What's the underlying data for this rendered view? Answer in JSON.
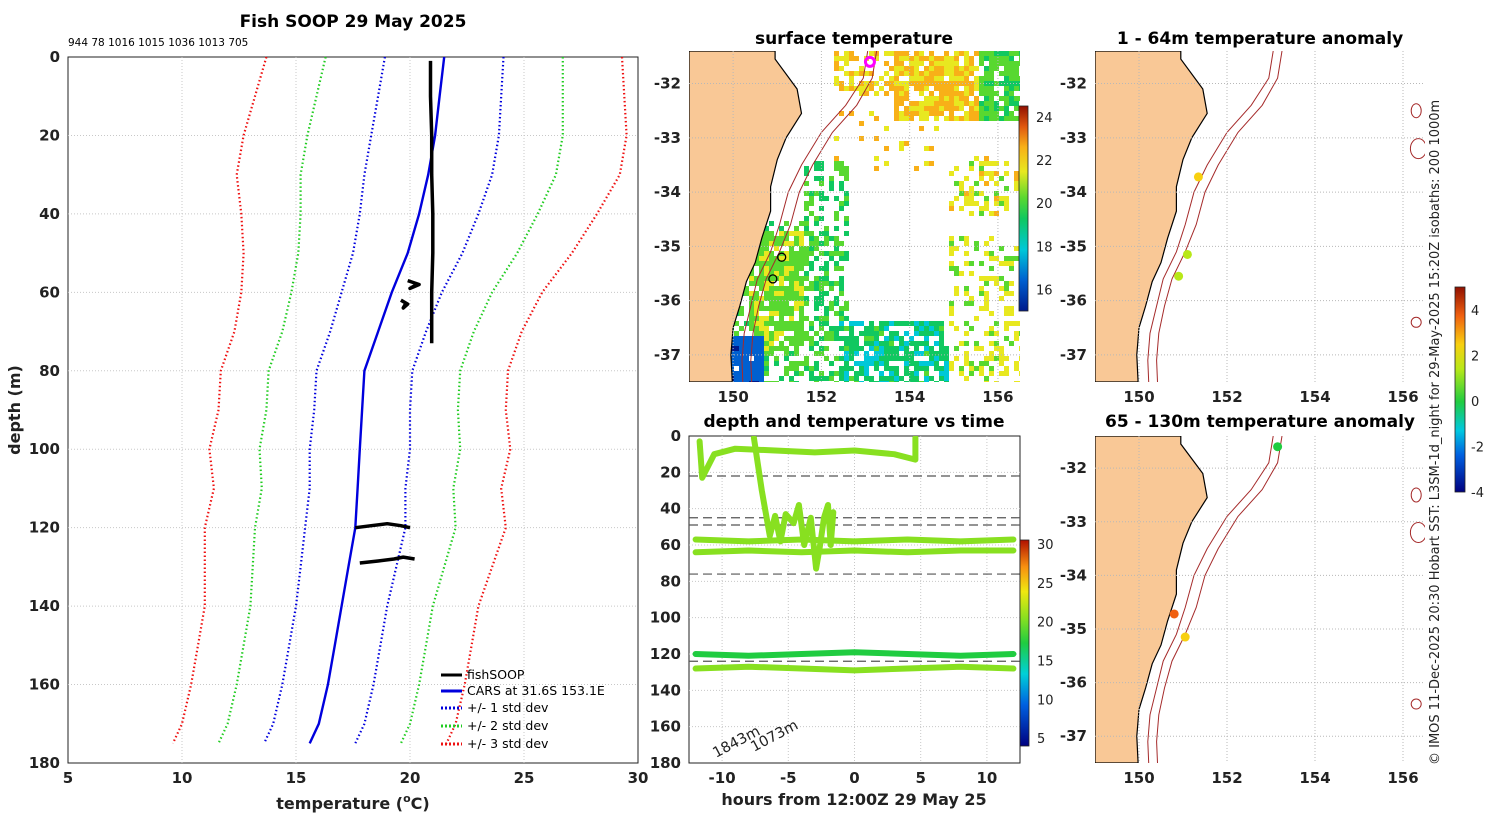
{
  "colors": {
    "land": "#f9c896",
    "coast": "#000000",
    "isobath": "#a52a2a",
    "grid": "#cccccc",
    "fishsoop": "#000000",
    "cars": "#0000dd",
    "std1": "#0000dd",
    "std2": "#22cc22",
    "std3": "#ee1111",
    "marker_magenta": "#ff00ff"
  },
  "panels": {
    "profile": {
      "title": "Fish SOOP 29 May 2025",
      "header_numbers": "944 78 1016 1015 1036 1013 705",
      "xlabel_prefix": "temperature (",
      "xlabel_sup": "o",
      "xlabel_suffix": "C)",
      "ylabel": "depth (m)",
      "legend": [
        "fishSOOP",
        "CARS at 31.6S 153.1E",
        "+/- 1 std dev",
        "+/- 2 std dev",
        "+/- 3 std dev"
      ]
    },
    "sst": {
      "title": "surface temperature"
    },
    "depth_time": {
      "title": "depth and temperature vs time",
      "xlabel": "hours from 12:00Z 29 May 25",
      "bathy_labels": [
        "1843m",
        "1073m"
      ]
    },
    "anom1": {
      "title": "1 - 64m temperature anomaly"
    },
    "anom2": {
      "title": "65 - 130m temperature anomaly"
    },
    "credit": "© IMOS 11-Dec-2025 20:30 Hobart SST: L3SM-1d_night for 29-May-2025 15:20Z isobaths: 200  1000m"
  },
  "chart_data": [
    {
      "type": "line",
      "id": "profile",
      "title": "Fish SOOP 29 May 2025",
      "xlabel": "temperature (oC)",
      "ylabel": "depth (m)",
      "xlim": [
        5,
        30
      ],
      "ylim": [
        180,
        0
      ],
      "xticks": [
        5,
        10,
        15,
        20,
        25,
        30
      ],
      "yticks": [
        0,
        20,
        40,
        60,
        80,
        100,
        120,
        140,
        160,
        180
      ],
      "depths": [
        0,
        10,
        20,
        30,
        40,
        50,
        60,
        70,
        80,
        90,
        100,
        110,
        120,
        130,
        140,
        150,
        160,
        170,
        175
      ],
      "cars_mean": [
        21.5,
        21.3,
        21.1,
        20.8,
        20.4,
        19.9,
        19.2,
        18.6,
        18.0,
        17.9,
        17.8,
        17.7,
        17.6,
        17.3,
        17.0,
        16.7,
        16.4,
        16.0,
        15.6
      ],
      "cars_std": [
        2.6,
        2.7,
        2.8,
        2.8,
        2.6,
        2.4,
        2.2,
        2.1,
        2.1,
        2.1,
        2.2,
        2.1,
        2.2,
        2.1,
        2.0,
        2.0,
        2.0,
        2.0,
        2.0
      ],
      "series_names": [
        "fishSOOP",
        "CARS at 31.6S 153.1E",
        "+/- 1 std dev",
        "+/- 2 std dev",
        "+/- 3 std dev"
      ],
      "fishsoop_segments": [
        {
          "depths": [
            1,
            10,
            20,
            30,
            40,
            50,
            60,
            73
          ],
          "temps": [
            20.9,
            20.9,
            20.95,
            20.95,
            21.0,
            21.0,
            20.95,
            20.95
          ]
        },
        {
          "depths": [
            57,
            58,
            59,
            58
          ],
          "temps": [
            19.9,
            20.4,
            20.0,
            20.3
          ]
        },
        {
          "depths": [
            62,
            63,
            64,
            63
          ],
          "temps": [
            19.6,
            19.9,
            19.7,
            19.8
          ]
        },
        {
          "depths": [
            120,
            119.5,
            119,
            119.5,
            120
          ],
          "temps": [
            17.6,
            18.3,
            19.0,
            19.6,
            20.0
          ]
        },
        {
          "depths": [
            129,
            128.5,
            128,
            127.5,
            128
          ],
          "temps": [
            17.8,
            18.6,
            19.3,
            19.7,
            20.2
          ]
        }
      ]
    },
    {
      "type": "heatmap",
      "id": "sst",
      "title": "surface temperature",
      "xlim": [
        149,
        156.5
      ],
      "ylim": [
        -37.5,
        -31.4
      ],
      "xticks": [
        150,
        152,
        154,
        156
      ],
      "yticks": [
        -32,
        -33,
        -34,
        -35,
        -36,
        -37
      ],
      "colorbar": {
        "range": [
          15,
          24.5
        ],
        "ticks": [
          16,
          18,
          20,
          22,
          24
        ]
      },
      "markers": [
        {
          "lon": 153.1,
          "lat": -31.6,
          "style": "magenta-ring"
        },
        {
          "lon": 151.1,
          "lat": -35.2,
          "style": "black-ring"
        },
        {
          "lon": 150.9,
          "lat": -35.6,
          "style": "black-ring"
        }
      ]
    },
    {
      "type": "scatter",
      "id": "depth_time",
      "title": "depth and temperature vs time",
      "xlabel": "hours from 12:00Z 29 May 25",
      "xlim": [
        -12.5,
        12.5
      ],
      "ylim": [
        180,
        0
      ],
      "xticks": [
        -10,
        -5,
        0,
        5,
        10
      ],
      "yticks": [
        0,
        20,
        40,
        60,
        80,
        100,
        120,
        140,
        160,
        180
      ],
      "colorbar": {
        "range": [
          4,
          30.5
        ],
        "ticks": [
          5,
          10,
          15,
          20,
          25,
          30
        ]
      },
      "dashed_depths": [
        22,
        45,
        49,
        76,
        124
      ],
      "tracks": [
        {
          "t": [
            -11.7,
            -11.5,
            -10.6,
            -9,
            -6,
            -3,
            0,
            3,
            4.6,
            4.6
          ],
          "d": [
            3,
            23,
            10,
            7,
            8,
            9,
            8,
            10,
            13,
            1
          ],
          "temp": 22.5
        },
        {
          "t": [
            -7.6,
            -7.0,
            -6.4,
            -6.0,
            -5.6,
            -5.2,
            -4.6,
            -4.2,
            -3.8,
            -3.3,
            -2.9,
            -2.6,
            -2.3,
            -2.0,
            -1.8,
            -1.6
          ],
          "d": [
            1,
            30,
            55,
            44,
            58,
            43,
            48,
            38,
            60,
            45,
            73,
            60,
            45,
            38,
            60,
            42
          ],
          "temp": 23
        },
        {
          "t": [
            -12,
            -8,
            -4,
            0,
            4,
            8,
            12
          ],
          "d": [
            57,
            58,
            57,
            58,
            57,
            58,
            57
          ],
          "temp": 21
        },
        {
          "t": [
            -12,
            -8,
            -4,
            0,
            4,
            8,
            12
          ],
          "d": [
            64,
            63,
            64,
            63,
            64,
            63,
            63
          ],
          "temp": 22
        },
        {
          "t": [
            -12,
            -8,
            -4,
            0,
            4,
            8,
            12
          ],
          "d": [
            120,
            121,
            120,
            119,
            120,
            121,
            120
          ],
          "temp": 19.5
        },
        {
          "t": [
            -12,
            -8,
            -4,
            0,
            4,
            8,
            12
          ],
          "d": [
            128,
            127,
            128,
            129,
            128,
            127,
            128
          ],
          "temp": 20.5
        }
      ],
      "annotations": [
        "1843m",
        "1073m"
      ]
    },
    {
      "type": "scatter",
      "id": "anom1",
      "title": "1 - 64m temperature anomaly",
      "xlim": [
        149,
        156.5
      ],
      "ylim": [
        -37.5,
        -31.4
      ],
      "xticks": [
        150,
        152,
        154,
        156
      ],
      "yticks": [
        -32,
        -33,
        -34,
        -35,
        -36,
        -37
      ],
      "points": [
        {
          "lon": 151.35,
          "lat": -33.72,
          "value": 2.9
        },
        {
          "lon": 151.1,
          "lat": -35.15,
          "value": 2.2
        },
        {
          "lon": 150.9,
          "lat": -35.55,
          "value": 2.0
        }
      ]
    },
    {
      "type": "scatter",
      "id": "anom2",
      "title": "65 - 130m temperature anomaly",
      "xlim": [
        149,
        156.5
      ],
      "ylim": [
        -37.5,
        -31.4
      ],
      "xticks": [
        150,
        152,
        154,
        156
      ],
      "yticks": [
        -32,
        -33,
        -34,
        -35,
        -36,
        -37
      ],
      "points": [
        {
          "lon": 153.15,
          "lat": -31.6,
          "value": 0.4
        },
        {
          "lon": 150.8,
          "lat": -34.72,
          "value": 4.2
        },
        {
          "lon": 151.05,
          "lat": -35.15,
          "value": 2.6
        }
      ],
      "colorbar": {
        "range": [
          -4,
          5
        ],
        "ticks": [
          -4,
          -2,
          0,
          2,
          4
        ]
      }
    }
  ]
}
